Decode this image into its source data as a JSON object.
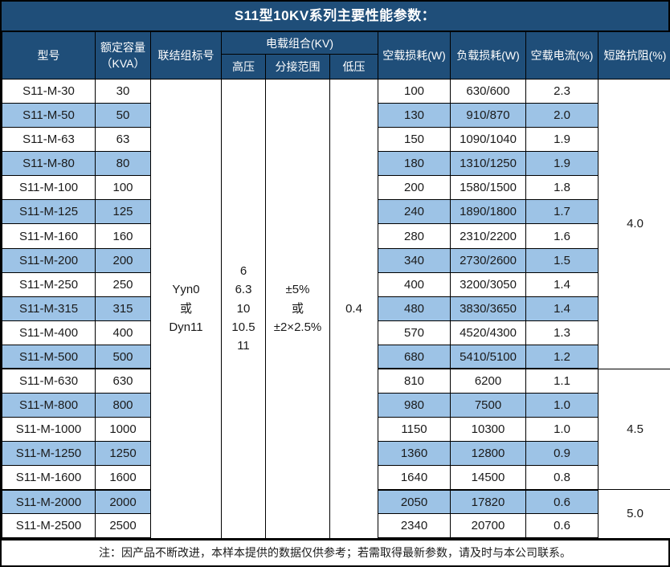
{
  "title": "S11型10KV系列主要性能参数：",
  "colors": {
    "header_bg": "#1F4E79",
    "header_text": "#FFFFFF",
    "row_alt_bg": "#9DC3E6",
    "row_bg": "#FFFFFF",
    "border": "#000000",
    "body_text": "#1A1A1A"
  },
  "header": {
    "model": "型号",
    "capacity_line1": "额定容量",
    "capacity_line2": "（KVA）",
    "connection": "联结组标号",
    "voltage_group": "电载组合(KV)",
    "hv": "高压",
    "tap_range": "分接范围",
    "lv": "低压",
    "no_load_loss": "空载损耗(W)",
    "load_loss": "负载损耗(W)",
    "no_load_current": "空载电流(%)",
    "impedance": "短路抗阻(%)"
  },
  "merged": {
    "connection": [
      "Yyn0",
      "或",
      "Dyn11"
    ],
    "hv": [
      "6",
      "6.3",
      "10",
      "10.5",
      "11"
    ],
    "tap_range": [
      "±5%",
      "或",
      "±2×2.5%"
    ],
    "lv": [
      "0.4"
    ]
  },
  "rows": [
    [
      "S11-M-30",
      "30",
      "100",
      "630/600",
      "2.3"
    ],
    [
      "S11-M-50",
      "50",
      "130",
      "910/870",
      "2.0"
    ],
    [
      "S11-M-63",
      "63",
      "150",
      "1090/1040",
      "1.9"
    ],
    [
      "S11-M-80",
      "80",
      "180",
      "1310/1250",
      "1.9"
    ],
    [
      "S11-M-100",
      "100",
      "200",
      "1580/1500",
      "1.8"
    ],
    [
      "S11-M-125",
      "125",
      "240",
      "1890/1800",
      "1.7"
    ],
    [
      "S11-M-160",
      "160",
      "280",
      "2310/2200",
      "1.6"
    ],
    [
      "S11-M-200",
      "200",
      "340",
      "2730/2600",
      "1.5"
    ],
    [
      "S11-M-250",
      "250",
      "400",
      "3200/3050",
      "1.4"
    ],
    [
      "S11-M-315",
      "315",
      "480",
      "3830/3650",
      "1.4"
    ],
    [
      "S11-M-400",
      "400",
      "570",
      "4520/4300",
      "1.3"
    ],
    [
      "S11-M-500",
      "500",
      "680",
      "5410/5100",
      "1.2"
    ],
    [
      "S11-M-630",
      "630",
      "810",
      "6200",
      "1.1"
    ],
    [
      "S11-M-800",
      "800",
      "980",
      "7500",
      "1.0"
    ],
    [
      "S11-M-1000",
      "1000",
      "1150",
      "10300",
      "1.0"
    ],
    [
      "S11-M-1250",
      "1250",
      "1360",
      "12800",
      "0.9"
    ],
    [
      "S11-M-1600",
      "1600",
      "1640",
      "14500",
      "0.8"
    ],
    [
      "S11-M-2000",
      "2000",
      "2050",
      "17820",
      "0.6"
    ],
    [
      "S11-M-2500",
      "2500",
      "2340",
      "20700",
      "0.6"
    ]
  ],
  "impedance_groups": [
    {
      "value": "4.0",
      "span": 12
    },
    {
      "value": "4.5",
      "span": 5
    },
    {
      "value": "5.0",
      "span": 2
    }
  ],
  "footer_note": "注：因产品不断改进，本样本提供的数据仅供参考；若需取得最新参数，请及时与本公司联系。"
}
